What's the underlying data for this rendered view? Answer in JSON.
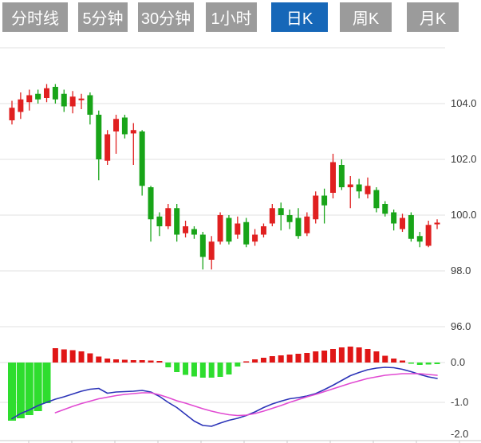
{
  "tabbar": {
    "tabs": [
      {
        "label": "分时线",
        "active": false
      },
      {
        "label": "5分钟",
        "active": false
      },
      {
        "label": "30分钟",
        "active": false
      },
      {
        "label": "1小时",
        "active": false
      },
      {
        "label": "日K",
        "active": true
      },
      {
        "label": "周K",
        "active": false
      },
      {
        "label": "月K",
        "active": false
      }
    ],
    "active_bg": "#1667b8",
    "inactive_bg": "#9b9b9b",
    "text_color": "#ffffff"
  },
  "chart_data": [
    {
      "type": "candlestick",
      "panel": "price",
      "grid": true,
      "legend_position": "none",
      "colors": {
        "up": "#e02020",
        "down": "#18a418"
      },
      "y_axis": {
        "position": "right",
        "range": [
          95.3,
          106.0
        ],
        "grid_top_value": 106,
        "tick_values": [
          104,
          102,
          100,
          98,
          96
        ],
        "tick_labels": [
          "104.0",
          "102.0",
          "100.0",
          "98.0",
          "96.0"
        ]
      },
      "candles_format": [
        "open",
        "close",
        "high",
        "low"
      ],
      "candles": [
        [
          103.4,
          103.85,
          104.1,
          103.25
        ],
        [
          103.7,
          104.15,
          104.4,
          103.45
        ],
        [
          104.05,
          104.3,
          104.5,
          103.75
        ],
        [
          104.35,
          104.15,
          104.5,
          104.0
        ],
        [
          104.2,
          104.55,
          104.7,
          104.05
        ],
        [
          104.6,
          104.15,
          104.7,
          104.0
        ],
        [
          104.35,
          103.9,
          104.5,
          103.7
        ],
        [
          103.9,
          104.25,
          104.45,
          103.65
        ],
        [
          104.12,
          104.18,
          104.35,
          103.8
        ],
        [
          104.3,
          103.6,
          104.4,
          103.25
        ],
        [
          103.6,
          102.0,
          103.75,
          101.25
        ],
        [
          101.95,
          102.9,
          103.05,
          101.8
        ],
        [
          103.0,
          103.45,
          103.6,
          102.2
        ],
        [
          103.5,
          102.9,
          103.6,
          102.75
        ],
        [
          102.93,
          103.05,
          103.3,
          101.8
        ],
        [
          103.0,
          101.05,
          103.05,
          100.7
        ],
        [
          101.0,
          99.85,
          101.05,
          99.05
        ],
        [
          99.95,
          99.6,
          100.1,
          99.25
        ],
        [
          99.6,
          100.25,
          100.4,
          99.5
        ],
        [
          100.25,
          99.3,
          100.4,
          99.05
        ],
        [
          99.35,
          99.6,
          99.8,
          99.2
        ],
        [
          99.5,
          99.3,
          99.6,
          99.15
        ],
        [
          99.3,
          98.5,
          99.4,
          98.05
        ],
        [
          98.4,
          99.05,
          99.25,
          98.05
        ],
        [
          99.05,
          100.0,
          100.1,
          98.95
        ],
        [
          99.9,
          99.05,
          100.0,
          98.95
        ],
        [
          99.3,
          99.7,
          99.95,
          99.15
        ],
        [
          99.75,
          98.95,
          99.9,
          98.85
        ],
        [
          99.05,
          99.3,
          99.5,
          98.9
        ],
        [
          99.3,
          99.6,
          99.7,
          99.2
        ],
        [
          99.7,
          100.25,
          100.4,
          99.6
        ],
        [
          100.25,
          100.0,
          100.45,
          99.45
        ],
        [
          100.0,
          99.75,
          100.2,
          99.5
        ],
        [
          99.9,
          99.25,
          100.25,
          99.15
        ],
        [
          99.35,
          99.95,
          100.1,
          99.25
        ],
        [
          99.85,
          100.7,
          100.85,
          99.7
        ],
        [
          100.7,
          100.35,
          100.95,
          99.7
        ],
        [
          100.8,
          101.9,
          102.2,
          100.6
        ],
        [
          101.8,
          101.0,
          102.0,
          100.9
        ],
        [
          101.0,
          101.1,
          101.4,
          100.25
        ],
        [
          101.1,
          100.85,
          101.3,
          100.6
        ],
        [
          100.75,
          101.05,
          101.35,
          100.6
        ],
        [
          100.9,
          100.25,
          101.0,
          100.1
        ],
        [
          100.4,
          100.05,
          100.5,
          99.95
        ],
        [
          100.1,
          99.7,
          100.2,
          99.45
        ],
        [
          99.5,
          99.9,
          100.05,
          99.4
        ],
        [
          100.0,
          99.15,
          100.1,
          99.05
        ],
        [
          99.25,
          99.05,
          99.4,
          98.85
        ],
        [
          98.9,
          99.65,
          99.8,
          98.85
        ],
        [
          99.67,
          99.73,
          99.85,
          99.5
        ]
      ]
    },
    {
      "type": "bar",
      "panel": "macd",
      "grid": true,
      "colors": {
        "pos": "#e01616",
        "neg": "#2edd2e",
        "dif": "#2c34b8",
        "dea": "#e14ad2"
      },
      "y_axis": {
        "position": "right",
        "range": [
          -2.1,
          0.55
        ],
        "tick_values": [
          0,
          -1,
          -2
        ],
        "tick_labels": [
          "0.0",
          "-1.0",
          "-2.0"
        ]
      },
      "histogram": [
        -1.46,
        -1.4,
        -1.32,
        -1.22,
        -1.02,
        0.36,
        0.33,
        0.31,
        0.28,
        0.23,
        0.15,
        0.1,
        0.08,
        0.07,
        0.06,
        0.06,
        0.05,
        0.04,
        -0.12,
        -0.24,
        -0.31,
        -0.35,
        -0.38,
        -0.38,
        -0.36,
        -0.3,
        -0.1,
        0.03,
        0.08,
        0.12,
        0.16,
        0.18,
        0.2,
        0.22,
        0.24,
        0.28,
        0.3,
        0.34,
        0.38,
        0.4,
        0.38,
        0.34,
        0.28,
        0.17,
        0.1,
        0.05,
        -0.03,
        -0.06,
        -0.05,
        -0.04
      ],
      "dif_line": [
        -1.41,
        -1.28,
        -1.19,
        -1.08,
        -1.0,
        -0.92,
        -0.86,
        -0.79,
        -0.72,
        -0.67,
        -0.65,
        -0.77,
        -0.74,
        -0.73,
        -0.72,
        -0.7,
        -0.74,
        -0.85,
        -1.0,
        -1.13,
        -1.3,
        -1.47,
        -1.58,
        -1.6,
        -1.52,
        -1.45,
        -1.4,
        -1.33,
        -1.24,
        -1.13,
        -1.04,
        -0.97,
        -0.91,
        -0.88,
        -0.84,
        -0.78,
        -0.68,
        -0.57,
        -0.45,
        -0.33,
        -0.25,
        -0.18,
        -0.14,
        -0.12,
        -0.13,
        -0.17,
        -0.23,
        -0.3,
        -0.36,
        -0.4
      ],
      "dea_line": [
        null,
        null,
        null,
        null,
        null,
        -1.26,
        -1.18,
        -1.1,
        -1.03,
        -0.97,
        -0.91,
        -0.87,
        -0.83,
        -0.8,
        -0.78,
        -0.76,
        -0.76,
        -0.81,
        -0.88,
        -0.96,
        -1.02,
        -1.09,
        -1.16,
        -1.22,
        -1.27,
        -1.31,
        -1.33,
        -1.32,
        -1.28,
        -1.22,
        -1.15,
        -1.08,
        -1.0,
        -0.93,
        -0.86,
        -0.8,
        -0.73,
        -0.66,
        -0.59,
        -0.52,
        -0.46,
        -0.4,
        -0.36,
        -0.32,
        -0.3,
        -0.28,
        -0.28,
        -0.28,
        -0.3,
        -0.32
      ]
    }
  ]
}
